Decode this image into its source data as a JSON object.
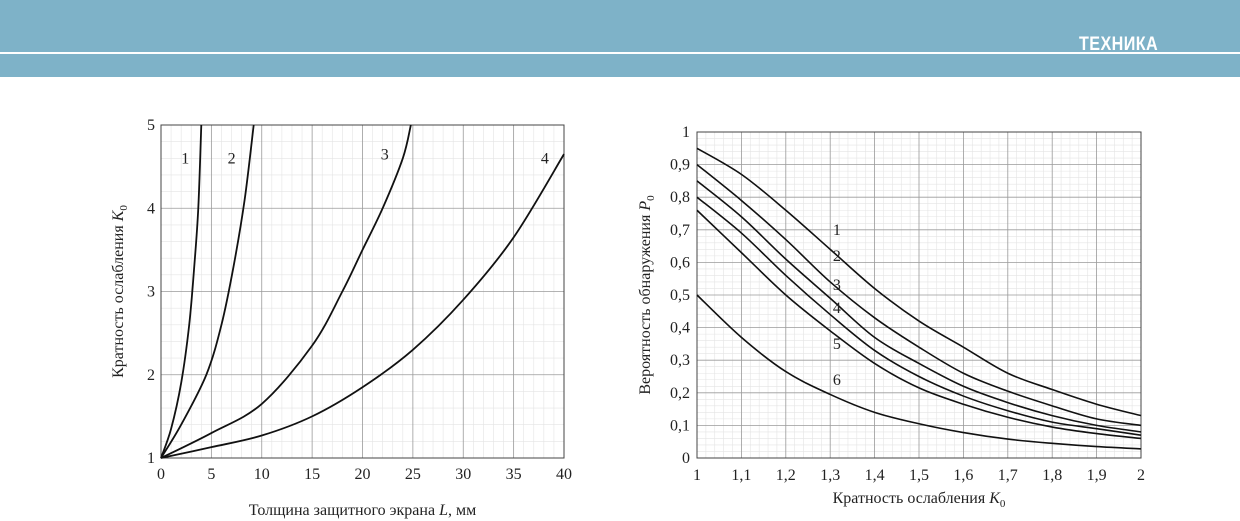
{
  "header": {
    "section_label": "ТЕХНИКА",
    "bg_color": "#7eb2c8"
  },
  "chart_data": [
    {
      "type": "line",
      "title": "",
      "xlabel_prefix": "Толщина защитного экрана ",
      "xlabel_var": "L",
      "xlabel_suffix": ", мм",
      "ylabel_prefix": "Кратность ослабления ",
      "ylabel_var": "K",
      "ylabel_sub": "0",
      "xlim": [
        0,
        40
      ],
      "ylim": [
        1,
        5
      ],
      "x_ticks": [
        "0",
        "5",
        "10",
        "15",
        "20",
        "25",
        "30",
        "35",
        "40"
      ],
      "y_ticks": [
        "1",
        "2",
        "3",
        "4",
        "5"
      ],
      "grid": true,
      "series": [
        {
          "name": "1",
          "points": [
            [
              0,
              1
            ],
            [
              1,
              1.35
            ],
            [
              2,
              1.9
            ],
            [
              2.8,
              2.6
            ],
            [
              3.3,
              3.3
            ],
            [
              3.7,
              4.0
            ],
            [
              4.0,
              5.0
            ]
          ]
        },
        {
          "name": "2",
          "points": [
            [
              0,
              1
            ],
            [
              2,
              1.4
            ],
            [
              4.5,
              2.0
            ],
            [
              6,
              2.6
            ],
            [
              7.2,
              3.3
            ],
            [
              8.3,
              4.1
            ],
            [
              9.2,
              5.0
            ]
          ]
        },
        {
          "name": "3",
          "points": [
            [
              0,
              1
            ],
            [
              5,
              1.3
            ],
            [
              10,
              1.65
            ],
            [
              15,
              2.35
            ],
            [
              18,
              3.0
            ],
            [
              20,
              3.5
            ],
            [
              22,
              4.0
            ],
            [
              24,
              4.6
            ],
            [
              24.8,
              5.0
            ]
          ]
        },
        {
          "name": "4",
          "points": [
            [
              0,
              1
            ],
            [
              5,
              1.13
            ],
            [
              10,
              1.27
            ],
            [
              15,
              1.5
            ],
            [
              20,
              1.85
            ],
            [
              25,
              2.3
            ],
            [
              30,
              2.9
            ],
            [
              35,
              3.65
            ],
            [
              40,
              4.65
            ]
          ]
        }
      ]
    },
    {
      "type": "line",
      "title": "",
      "xlabel_prefix": "Кратность ослабления ",
      "xlabel_var": "K",
      "xlabel_sub": "0",
      "ylabel_prefix": "Вероятность обнаружения ",
      "ylabel_var": "P",
      "ylabel_sub": "0",
      "xlim": [
        1,
        2
      ],
      "ylim": [
        0,
        1
      ],
      "x_ticks": [
        "1",
        "1,1",
        "1,2",
        "1,3",
        "1,4",
        "1,5",
        "1,6",
        "1,7",
        "1,8",
        "1,9",
        "2"
      ],
      "y_ticks": [
        "0",
        "0,1",
        "0,2",
        "0,3",
        "0,4",
        "0,5",
        "0,6",
        "0,7",
        "0,8",
        "0,9",
        "1"
      ],
      "grid": true,
      "series": [
        {
          "name": "1",
          "x": [
            1,
            1.1,
            1.2,
            1.3,
            1.4,
            1.5,
            1.6,
            1.7,
            1.8,
            1.9,
            2
          ],
          "y": [
            0.95,
            0.87,
            0.76,
            0.64,
            0.52,
            0.42,
            0.34,
            0.26,
            0.21,
            0.165,
            0.13
          ]
        },
        {
          "name": "2",
          "x": [
            1,
            1.1,
            1.2,
            1.3,
            1.4,
            1.5,
            1.6,
            1.7,
            1.8,
            1.9,
            2
          ],
          "y": [
            0.9,
            0.79,
            0.67,
            0.54,
            0.43,
            0.34,
            0.26,
            0.205,
            0.16,
            0.12,
            0.1
          ]
        },
        {
          "name": "3",
          "x": [
            1,
            1.1,
            1.2,
            1.3,
            1.4,
            1.5,
            1.6,
            1.7,
            1.8,
            1.9,
            2
          ],
          "y": [
            0.85,
            0.74,
            0.61,
            0.49,
            0.37,
            0.29,
            0.22,
            0.17,
            0.13,
            0.1,
            0.08
          ]
        },
        {
          "name": "4",
          "x": [
            1,
            1.1,
            1.2,
            1.3,
            1.4,
            1.5,
            1.6,
            1.7,
            1.8,
            1.9,
            2
          ],
          "y": [
            0.8,
            0.69,
            0.56,
            0.44,
            0.33,
            0.25,
            0.19,
            0.145,
            0.11,
            0.09,
            0.07
          ]
        },
        {
          "name": "5",
          "x": [
            1,
            1.1,
            1.2,
            1.3,
            1.4,
            1.5,
            1.6,
            1.7,
            1.8,
            1.9,
            2
          ],
          "y": [
            0.76,
            0.63,
            0.5,
            0.39,
            0.29,
            0.215,
            0.165,
            0.125,
            0.095,
            0.075,
            0.06
          ]
        },
        {
          "name": "6",
          "x": [
            1,
            1.1,
            1.2,
            1.3,
            1.4,
            1.5,
            1.6,
            1.7,
            1.8,
            1.9,
            2
          ],
          "y": [
            0.5,
            0.37,
            0.265,
            0.195,
            0.14,
            0.105,
            0.078,
            0.058,
            0.045,
            0.035,
            0.028
          ]
        }
      ]
    }
  ]
}
